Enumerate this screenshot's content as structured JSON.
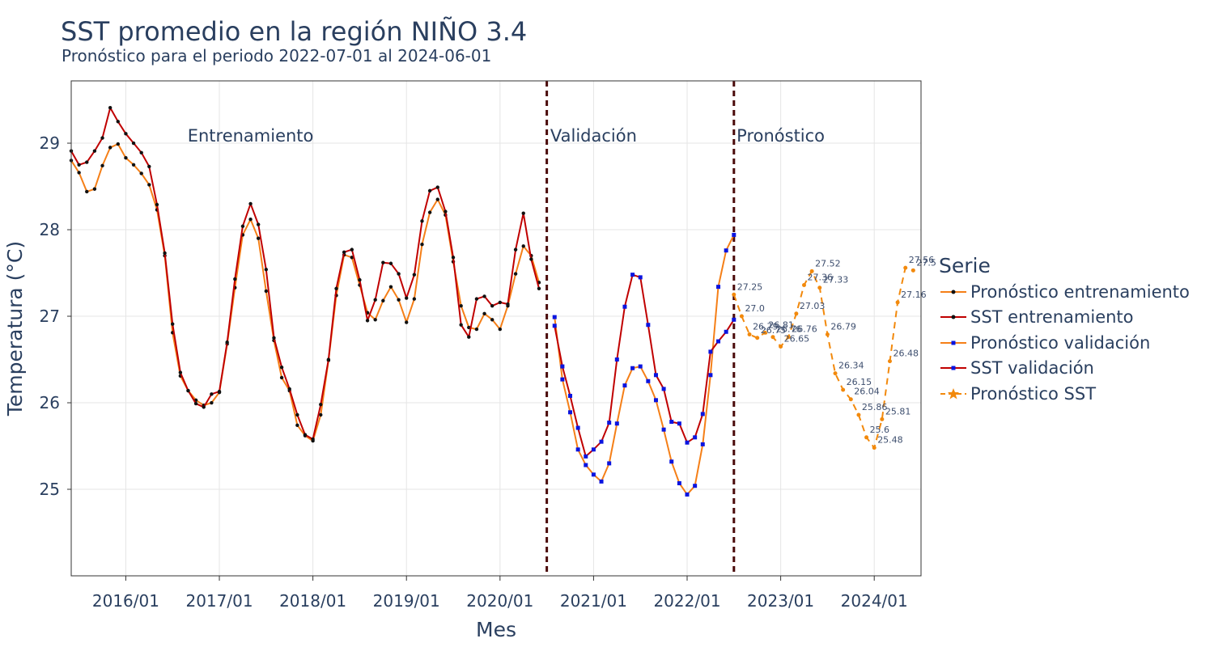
{
  "title": "SST promedio en la región NIÑO 3.4",
  "subtitle": "Pronóstico para el periodo 2022-07-01 al 2024-06-01",
  "colors": {
    "train_forecast": "#f57f17",
    "train_sst": "#c00000",
    "train_marker": "#111111",
    "val_forecast": "#f57f17",
    "val_sst": "#c00000",
    "val_marker": "#0a14e0",
    "future": "#f2890c",
    "split_line": "#4a0a0a",
    "grid": "#e5e5e5",
    "text": "#2a3f5f",
    "label_text": "#3d4e6e"
  },
  "legend": {
    "title": "Serie",
    "items": [
      {
        "label": "Pronóstico entrenamiento",
        "icon": "line-dot-black"
      },
      {
        "label": "SST entrenamiento",
        "icon": "line-dot-black"
      },
      {
        "label": "Pronóstico validación",
        "icon": "line-square-blue"
      },
      {
        "label": "SST validación",
        "icon": "line-square-blue"
      },
      {
        "label": "Pronóstico SST",
        "icon": "dashed-star"
      }
    ]
  },
  "chart_data": {
    "type": "line",
    "title": "SST promedio en la región NIÑO 3.4",
    "subtitle": "Pronóstico para el periodo 2022-07-01 al 2024-06-01",
    "xlabel": "Mes",
    "ylabel": "Temperatura (°C)",
    "xlim": [
      "2015-06-01",
      "2024-07-01"
    ],
    "ylim": [
      24.0,
      29.72
    ],
    "x_ticks": [
      "2016/01",
      "2017/01",
      "2018/01",
      "2019/01",
      "2020/01",
      "2021/01",
      "2022/01",
      "2023/01",
      "2024/01"
    ],
    "y_ticks": [
      25,
      26,
      27,
      28,
      29
    ],
    "grid": true,
    "legend_position": "right",
    "split_lines": [
      "2020-07-01",
      "2022-07-01"
    ],
    "regions": [
      {
        "label": "Entrenamiento",
        "x": "2017-05-01"
      },
      {
        "label": "Validación",
        "x": "2021-01-01"
      },
      {
        "label": "Pronóstico",
        "x": "2023-01-01"
      }
    ],
    "series": [
      {
        "name": "Pronóstico entrenamiento",
        "key": "train_forecast",
        "style": "solid-dot",
        "start": "2015-06-01",
        "values": [
          28.8,
          28.66,
          28.44,
          28.47,
          28.74,
          28.95,
          28.99,
          28.83,
          28.75,
          28.65,
          28.52,
          28.23,
          27.7,
          26.81,
          26.31,
          26.14,
          26.03,
          25.97,
          26.0,
          26.12,
          26.68,
          27.33,
          27.94,
          28.12,
          27.9,
          27.29,
          26.72,
          26.29,
          26.14,
          25.74,
          25.62,
          25.56,
          25.86,
          26.49,
          27.24,
          27.71,
          27.68,
          27.36,
          27.04,
          26.96,
          27.18,
          27.34,
          27.19,
          26.93,
          27.2,
          27.83,
          28.2,
          28.35,
          28.17,
          27.63,
          27.12,
          26.87,
          26.85,
          27.03,
          26.96,
          26.85,
          27.12,
          27.49,
          27.81,
          27.7,
          27.39
        ]
      },
      {
        "name": "SST entrenamiento",
        "key": "train_sst",
        "style": "solid-dot",
        "start": "2015-06-01",
        "values": [
          28.91,
          28.75,
          28.78,
          28.91,
          29.06,
          29.41,
          29.25,
          29.11,
          29.0,
          28.89,
          28.73,
          28.29,
          27.73,
          26.91,
          26.35,
          26.14,
          25.99,
          25.95,
          26.1,
          26.13,
          26.7,
          27.43,
          28.04,
          28.3,
          28.06,
          27.54,
          26.75,
          26.41,
          26.16,
          25.86,
          25.63,
          25.58,
          25.98,
          26.5,
          27.32,
          27.74,
          27.77,
          27.42,
          26.95,
          27.19,
          27.62,
          27.61,
          27.49,
          27.21,
          27.48,
          28.1,
          28.45,
          28.49,
          28.21,
          27.68,
          26.9,
          26.76,
          27.2,
          27.23,
          27.12,
          27.16,
          27.14,
          27.77,
          28.19,
          27.66,
          27.32
        ]
      },
      {
        "name": "Pronóstico validación",
        "key": "val_forecast",
        "style": "solid-square",
        "start": "2020-08-01",
        "values": [
          26.99,
          26.27,
          25.89,
          25.46,
          25.28,
          25.17,
          25.09,
          25.3,
          25.76,
          26.2,
          26.4,
          26.42,
          26.25,
          26.03,
          25.69,
          25.32,
          25.07,
          24.94,
          25.04,
          25.52,
          26.32,
          27.34,
          27.76,
          27.94
        ]
      },
      {
        "name": "SST validación",
        "key": "val_sst",
        "style": "solid-square",
        "start": "2020-08-01",
        "values": [
          26.89,
          26.42,
          26.08,
          25.71,
          25.38,
          25.46,
          25.55,
          25.77,
          26.5,
          27.11,
          27.48,
          27.45,
          26.9,
          26.32,
          26.16,
          25.78,
          25.76,
          25.54,
          25.6,
          25.87,
          26.59,
          26.71,
          26.82,
          26.96
        ]
      },
      {
        "name": "Pronóstico SST",
        "key": "future",
        "style": "dashed-dot",
        "start": "2022-07-01",
        "values": [
          27.25,
          27.0,
          26.79,
          26.75,
          26.81,
          26.76,
          26.65,
          26.76,
          27.03,
          27.36,
          27.52,
          27.33,
          26.79,
          26.34,
          26.15,
          26.04,
          25.86,
          25.6,
          25.48,
          25.81,
          26.48,
          27.16,
          27.56,
          27.53
        ],
        "labels": [
          "27.25",
          "27.0",
          "26.79",
          "26.75",
          "26.81",
          "26.76",
          "26.65",
          "26.76",
          "27.03",
          "27.36",
          "27.52",
          "27.33",
          "26.79",
          "26.34",
          "26.15",
          "26.04",
          "25.86",
          "25.6",
          "25.48",
          "25.81",
          "26.48",
          "27.16",
          "27.56",
          "27.5"
        ]
      }
    ]
  }
}
